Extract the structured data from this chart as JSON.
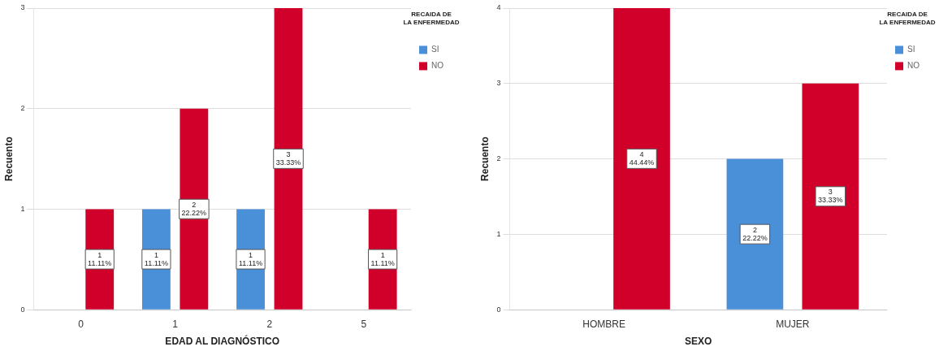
{
  "chart_data": [
    {
      "type": "bar",
      "xlabel": "EDAD AL DIAGNÓSTICO",
      "ylabel": "Recuento",
      "legend_title": "RECAIDA DE LA ENFERMEDAD",
      "legend": "top right",
      "grid": "y",
      "categories": [
        "0",
        "1",
        "2",
        "5"
      ],
      "ylim": [
        0,
        3
      ],
      "yticks": [
        0,
        1,
        2,
        3
      ],
      "series": [
        {
          "name": "SI",
          "color": "#4a90d9",
          "values": [
            null,
            1,
            1,
            null
          ],
          "value_labels": [
            null,
            "1\n11.11%",
            "1\n11.11%",
            null
          ]
        },
        {
          "name": "NO",
          "color": "#d0002b",
          "values": [
            1,
            2,
            3,
            1
          ],
          "value_labels": [
            "1\n11.11%",
            "2\n22.22%",
            "3\n33.33%",
            "1\n11.11%"
          ]
        }
      ]
    },
    {
      "type": "bar",
      "xlabel": "SEXO",
      "ylabel": "Recuento",
      "legend_title": "RECAIDA DE LA ENFERMEDAD",
      "legend": "top right",
      "grid": "y",
      "categories": [
        "HOMBRE",
        "MUJER"
      ],
      "ylim": [
        0,
        4
      ],
      "yticks": [
        0,
        1,
        2,
        3,
        4
      ],
      "series": [
        {
          "name": "SI",
          "color": "#4a90d9",
          "values": [
            null,
            2
          ],
          "value_labels": [
            null,
            "2\n22.22%"
          ]
        },
        {
          "name": "NO",
          "color": "#d0002b",
          "values": [
            4,
            3
          ],
          "value_labels": [
            "4\n44.44%",
            "3\n33.33%"
          ]
        }
      ]
    }
  ]
}
